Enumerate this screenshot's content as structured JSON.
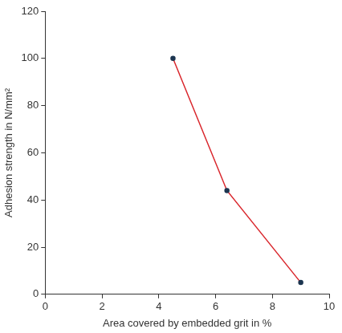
{
  "chart_data": {
    "type": "line",
    "x_label": "Area covered by embedded grit in %",
    "y_label": "Adhesion strength in N/mm²",
    "x": [
      4.5,
      6.4,
      9.0
    ],
    "values": [
      100,
      44,
      5
    ],
    "color": "#d9262c",
    "marker": "circle",
    "xlim": [
      0,
      10
    ],
    "xticks": [
      0,
      2,
      4,
      6,
      8,
      10
    ],
    "ylim": [
      0,
      120
    ],
    "yticks": [
      0,
      20,
      40,
      60,
      80,
      100,
      120
    ],
    "grid": false
  }
}
